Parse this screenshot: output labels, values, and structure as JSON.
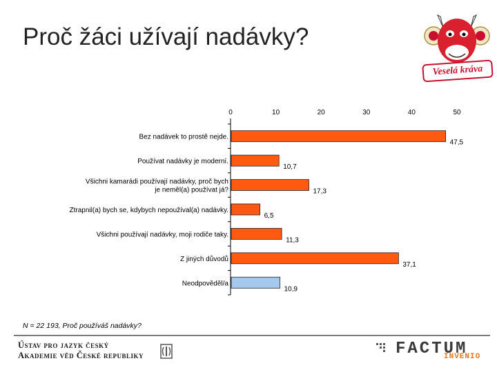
{
  "slide": {
    "title": "Proč žáci užívají nadávky?",
    "note": "N = 22 193, Proč používáš nadávky?",
    "brand_text": "Veselá kráva",
    "institute_line1": "Ústav pro jazyk český",
    "institute_line2": "Akademie věd České republiky",
    "factum_text": "FACTUM",
    "invenio_text": "INVENIO"
  },
  "colors": {
    "bar_primary": "#ff5a10",
    "bar_secondary": "#a6c8ec",
    "brand_red": "#c8102e"
  },
  "chart_data": {
    "type": "bar",
    "orientation": "horizontal",
    "title": "",
    "xlabel": "",
    "ylabel": "",
    "xlim": [
      0,
      50
    ],
    "x_ticks": [
      0,
      10,
      20,
      30,
      40,
      50
    ],
    "x_axis_position": "top",
    "grid": false,
    "legend": "none",
    "categories": [
      [
        "Bez nadávek to prostě nejde."
      ],
      [
        "Používat nadávky je moderní."
      ],
      [
        "Všichni kamarádi používají nadávky, proč bych",
        "je neměl(a) používat já?"
      ],
      [
        "Ztrapnil(a) bych se, kdybych nepoužíval(a) nadávky."
      ],
      [
        "Všichni používají nadávky, moji rodiče taky."
      ],
      [
        "Z jiných důvodů"
      ],
      [
        "Neodpověděl/a"
      ]
    ],
    "values": [
      47.5,
      10.7,
      17.3,
      6.5,
      11.3,
      37.1,
      10.9
    ],
    "value_labels": [
      "47,5",
      "10,7",
      "17,3",
      "6,5",
      "11,3",
      "37,1",
      "10,9"
    ],
    "bar_colors": [
      "primary",
      "primary",
      "primary",
      "primary",
      "primary",
      "primary",
      "secondary"
    ]
  }
}
